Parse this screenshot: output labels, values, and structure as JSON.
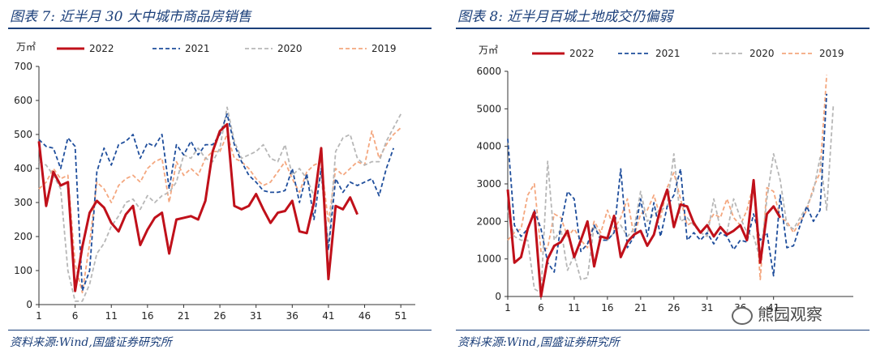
{
  "left": {
    "title": "图表 7:  近半月 30 大中城市商品房销售",
    "source": "资料来源:Wind,国盛证券研究所"
  },
  "right": {
    "title": "图表 8:  近半月百城土地成交仍偏弱",
    "source": "资料来源:Wind,国盛证券研究所"
  },
  "watermark": "熊园观察",
  "chart_data": [
    {
      "type": "line",
      "ylabel": "万㎡",
      "ylim": [
        0,
        700
      ],
      "yticks": [
        0,
        100,
        200,
        300,
        400,
        500,
        600,
        700
      ],
      "xticks": [
        "1",
        "6",
        "11",
        "16",
        "21",
        "26",
        "31",
        "36",
        "41",
        "46",
        "51"
      ],
      "xlim": [
        1,
        53
      ],
      "legend_position": "top",
      "series": [
        {
          "name": "2022",
          "color": "#c0101a",
          "style": "solid",
          "values": [
            480,
            290,
            390,
            350,
            360,
            40,
            170,
            270,
            305,
            285,
            240,
            215,
            265,
            290,
            175,
            220,
            255,
            270,
            150,
            250,
            255,
            260,
            250,
            305,
            450,
            510,
            530,
            290,
            280,
            290,
            325,
            280,
            240,
            270,
            275,
            305,
            215,
            210,
            300,
            460,
            75,
            290,
            280,
            315,
            265
          ]
        },
        {
          "name": "2021",
          "color": "#1f4e9c",
          "style": "dash",
          "values": [
            485,
            465,
            460,
            400,
            490,
            465,
            40,
            100,
            390,
            460,
            410,
            470,
            480,
            500,
            430,
            475,
            465,
            500,
            340,
            470,
            440,
            480,
            440,
            470,
            470,
            500,
            560,
            470,
            420,
            380,
            360,
            335,
            330,
            330,
            335,
            400,
            300,
            385,
            250,
            400,
            160,
            370,
            330,
            360,
            350,
            360,
            370,
            320,
            400,
            460
          ]
        },
        {
          "name": "2020",
          "color": "#b7b7b7",
          "style": "dash",
          "values": [
            420,
            410,
            380,
            340,
            100,
            10,
            10,
            60,
            150,
            180,
            230,
            260,
            300,
            310,
            280,
            320,
            300,
            320,
            330,
            360,
            440,
            430,
            460,
            430,
            420,
            460,
            580,
            480,
            430,
            440,
            450,
            470,
            430,
            420,
            470,
            380,
            400,
            370,
            320,
            380,
            170,
            450,
            490,
            500,
            430,
            410,
            420,
            420,
            480,
            520,
            560
          ]
        },
        {
          "name": "2019",
          "color": "#f4a77f",
          "style": "dash",
          "values": [
            340,
            360,
            400,
            370,
            380,
            120,
            35,
            180,
            360,
            340,
            300,
            350,
            370,
            380,
            360,
            400,
            420,
            430,
            300,
            420,
            380,
            400,
            380,
            430,
            450,
            450,
            500,
            430,
            420,
            400,
            370,
            350,
            360,
            390,
            420,
            370,
            330,
            390,
            410,
            420,
            240,
            400,
            380,
            400,
            420,
            410,
            510,
            430,
            470,
            500,
            520
          ]
        }
      ]
    },
    {
      "type": "line",
      "ylabel": "万㎡",
      "ylim": [
        0,
        6000
      ],
      "yticks": [
        0,
        1000,
        2000,
        3000,
        4000,
        5000,
        6000
      ],
      "xticks": [
        "1",
        "6",
        "11",
        "16",
        "21",
        "26",
        "31",
        "36",
        "41"
      ],
      "xlim": [
        1,
        53
      ],
      "legend_position": "top",
      "series": [
        {
          "name": "2022",
          "color": "#c0101a",
          "style": "solid",
          "values": [
            2850,
            900,
            1050,
            1800,
            2250,
            0,
            1000,
            1350,
            1450,
            1750,
            1050,
            1500,
            2000,
            800,
            1600,
            1550,
            2150,
            1050,
            1450,
            1650,
            1750,
            1350,
            1650,
            2350,
            2850,
            1850,
            2450,
            2400,
            1950,
            1700,
            1900,
            1600,
            1850,
            1650,
            1750,
            1900,
            1500,
            3100,
            900,
            2200,
            2400,
            2100
          ]
        },
        {
          "name": "2021",
          "color": "#1f4e9c",
          "style": "dash",
          "values": [
            4200,
            1900,
            1600,
            1800,
            2300,
            1800,
            900,
            650,
            1900,
            2800,
            2600,
            1200,
            1400,
            1900,
            1500,
            1500,
            1700,
            3400,
            1300,
            1600,
            2600,
            1600,
            2500,
            1600,
            2400,
            2700,
            3400,
            1500,
            1700,
            1500,
            1700,
            1400,
            1700,
            1600,
            1250,
            1500,
            1450,
            2200,
            1500,
            1700,
            550,
            2700,
            1300,
            1350,
            1900,
            2400,
            2000,
            2300,
            5400
          ]
        },
        {
          "name": "2020",
          "color": "#b7b7b7",
          "style": "dash",
          "values": [
            2300,
            1600,
            1500,
            1500,
            200,
            100,
            3600,
            1500,
            1800,
            700,
            1100,
            450,
            500,
            1900,
            1600,
            1500,
            1700,
            1900,
            1600,
            1800,
            2800,
            2000,
            2200,
            2300,
            2400,
            3800,
            2000,
            2100,
            1900,
            1700,
            1600,
            2600,
            1800,
            1700,
            2600,
            2100,
            1700,
            1600,
            1000,
            2600,
            3800,
            3100,
            1900,
            1800,
            2100,
            2400,
            2800,
            3700,
            2300,
            5100
          ]
        },
        {
          "name": "2019",
          "color": "#f4a77f",
          "style": "dash",
          "values": [
            1500,
            1700,
            1800,
            2700,
            3000,
            1200,
            1300,
            2200,
            2100,
            1600,
            1800,
            1500,
            1300,
            2000,
            1700,
            2300,
            1800,
            2100,
            2600,
            1600,
            2200,
            2300,
            2700,
            2100,
            2900,
            3300,
            2600,
            1900,
            2000,
            1700,
            1900,
            2200,
            2100,
            2600,
            2100,
            1900,
            2300,
            3000,
            450,
            2900,
            2800,
            2100,
            2000,
            1700,
            2000,
            2300,
            2900,
            3300,
            5900
          ]
        }
      ]
    }
  ]
}
